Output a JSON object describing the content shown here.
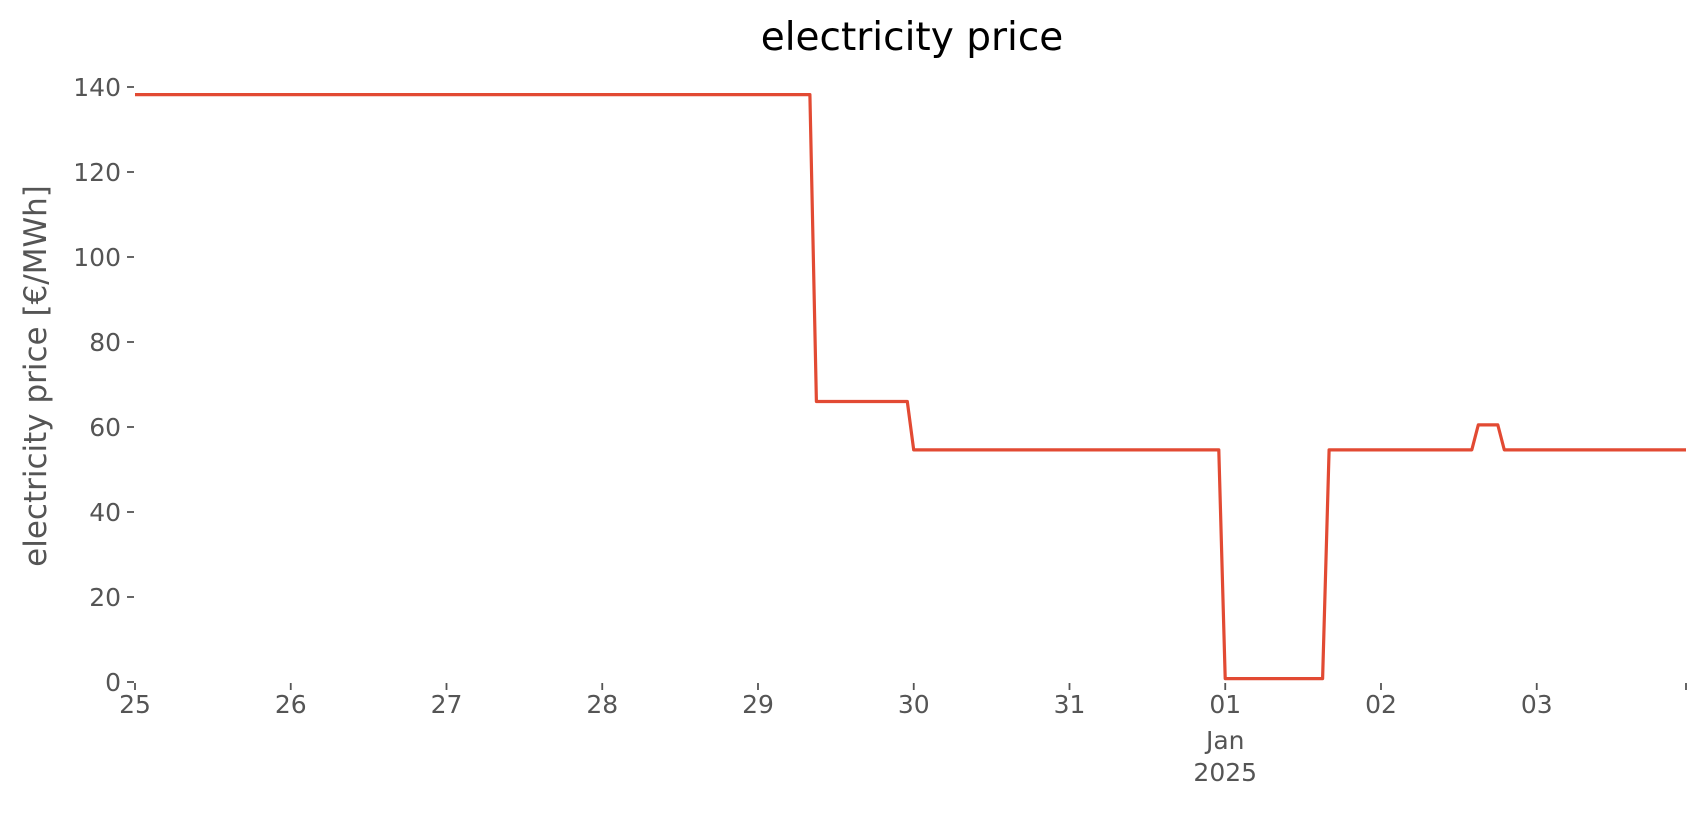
{
  "chart_data": {
    "type": "line",
    "title": "electricity price",
    "xlabel": "",
    "ylabel": "electricity price [€/MWh]",
    "ylim": [
      0,
      140
    ],
    "xlim": [
      "2024-12-25T00:00",
      "2025-01-03T23:00"
    ],
    "grid": false,
    "yticks": [
      0,
      20,
      40,
      60,
      80,
      100,
      120,
      140
    ],
    "ytick_labels": [
      "0",
      "20",
      "40",
      "60",
      "80",
      "100",
      "120",
      "140"
    ],
    "xticks": [
      {
        "date": "2024-12-25T00:00",
        "label": "25"
      },
      {
        "date": "2024-12-26T00:00",
        "label": "26"
      },
      {
        "date": "2024-12-27T00:00",
        "label": "27"
      },
      {
        "date": "2024-12-28T00:00",
        "label": "28"
      },
      {
        "date": "2024-12-29T00:00",
        "label": "29"
      },
      {
        "date": "2024-12-30T00:00",
        "label": "30"
      },
      {
        "date": "2024-12-31T00:00",
        "label": "31"
      },
      {
        "date": "2025-01-01T00:00",
        "label": "01"
      },
      {
        "date": "2025-01-02T00:00",
        "label": "02"
      },
      {
        "date": "2025-01-03T00:00",
        "label": "03"
      }
    ],
    "xtick_sublabels": [
      {
        "date": "2025-01-01T00:00",
        "lines": [
          "Jan",
          "2025"
        ]
      }
    ],
    "series": [
      {
        "color": "#E24A33",
        "points": [
          {
            "x": "2024-12-25T00:00",
            "y": 138.2
          },
          {
            "x": "2024-12-29T08:00",
            "y": 138.2
          },
          {
            "x": "2024-12-29T09:00",
            "y": 66.0
          },
          {
            "x": "2024-12-29T23:00",
            "y": 66.0
          },
          {
            "x": "2024-12-30T00:00",
            "y": 54.6
          },
          {
            "x": "2024-12-31T23:00",
            "y": 54.6
          },
          {
            "x": "2025-01-01T00:00",
            "y": 0.8
          },
          {
            "x": "2025-01-01T15:00",
            "y": 0.8
          },
          {
            "x": "2025-01-01T16:00",
            "y": 54.6
          },
          {
            "x": "2025-01-02T14:00",
            "y": 54.6
          },
          {
            "x": "2025-01-02T15:00",
            "y": 60.5
          },
          {
            "x": "2025-01-02T18:00",
            "y": 60.5
          },
          {
            "x": "2025-01-02T19:00",
            "y": 54.6
          },
          {
            "x": "2025-01-03T23:00",
            "y": 54.6
          }
        ]
      }
    ]
  }
}
